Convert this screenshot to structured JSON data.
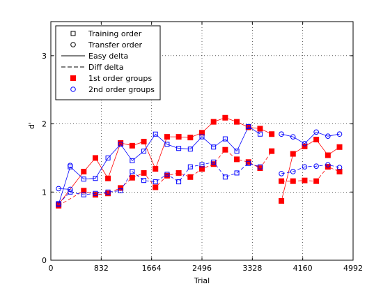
{
  "chart_data": {
    "type": "line",
    "title": "",
    "xlabel": "Trial",
    "ylabel": "d'",
    "xlim": [
      0,
      4992
    ],
    "ylim": [
      0,
      3.5
    ],
    "xticks": [
      0,
      832,
      1664,
      2496,
      3328,
      4160,
      4992
    ],
    "yticks": [
      0,
      1,
      2,
      3
    ],
    "grid": true,
    "legend_position": "top-left",
    "legend": [
      {
        "label": "Training order",
        "kind": "marker",
        "marker": "square-open",
        "color": "#000000"
      },
      {
        "label": "Transfer order",
        "kind": "marker",
        "marker": "circle-open",
        "color": "#000000"
      },
      {
        "label": "Easy delta",
        "kind": "line",
        "dash": "solid",
        "color": "#000000"
      },
      {
        "label": "Diff delta",
        "kind": "line",
        "dash": "dashed",
        "color": "#000000"
      },
      {
        "label": "1st order groups",
        "kind": "marker",
        "marker": "square-filled",
        "color": "#ff0000"
      },
      {
        "label": "2nd order groups",
        "kind": "marker",
        "marker": "circle-open",
        "color": "#0000ff"
      }
    ],
    "series": [
      {
        "group": "1st order groups",
        "order": "Training order",
        "delta": "Easy delta",
        "color": "#ff0000",
        "marker": "square-filled",
        "dash": "solid",
        "x": [
          128,
          544,
          736,
          944,
          1152,
          1344,
          1536,
          1728,
          1920,
          2112,
          2304,
          2496,
          2688,
          2880,
          3072,
          3264,
          3456,
          3648
        ],
        "y": [
          0.82,
          1.3,
          1.5,
          1.2,
          1.72,
          1.68,
          1.74,
          1.34,
          1.81,
          1.81,
          1.8,
          1.87,
          2.03,
          2.09,
          2.03,
          1.95,
          1.93,
          1.85
        ]
      },
      {
        "group": "1st order groups",
        "order": "Training order",
        "delta": "Diff delta",
        "color": "#ff0000",
        "marker": "square-filled",
        "dash": "dashed",
        "x": [
          128,
          544,
          736,
          944,
          1152,
          1344,
          1536,
          1728,
          1920,
          2112,
          2304,
          2496,
          2688,
          2880,
          3072,
          3264,
          3456,
          3648
        ],
        "y": [
          0.8,
          1.02,
          0.96,
          0.98,
          1.06,
          1.21,
          1.28,
          1.07,
          1.24,
          1.28,
          1.22,
          1.34,
          1.41,
          1.62,
          1.48,
          1.44,
          1.35,
          1.6
        ]
      },
      {
        "group": "1st order groups",
        "order": "Transfer order",
        "delta": "Easy delta",
        "color": "#ff0000",
        "marker": "square-filled",
        "dash": "solid",
        "x": [
          3808,
          4000,
          4192,
          4384,
          4576,
          4768
        ],
        "y": [
          0.87,
          1.56,
          1.67,
          1.77,
          1.54,
          1.66
        ]
      },
      {
        "group": "1st order groups",
        "order": "Transfer order",
        "delta": "Diff delta",
        "color": "#ff0000",
        "marker": "square-filled",
        "dash": "dashed",
        "x": [
          3808,
          4000,
          4192,
          4384,
          4576,
          4768
        ],
        "y": [
          1.16,
          1.16,
          1.17,
          1.16,
          1.37,
          1.3
        ]
      },
      {
        "group": "2nd order groups",
        "order": "Training order",
        "delta": "Easy delta",
        "color": "#0000ff",
        "marker": "square-open",
        "dash": "solid",
        "x": [
          128,
          320,
          544,
          736,
          944,
          1152,
          1344,
          1536,
          1728,
          1920,
          2112,
          2304,
          2496,
          2688,
          2880,
          3072,
          3264,
          3456
        ],
        "y": [
          0.82,
          1.37,
          1.19,
          1.2,
          1.5,
          1.7,
          1.46,
          1.6,
          1.85,
          1.7,
          1.64,
          1.63,
          1.81,
          1.66,
          1.78,
          1.6,
          1.96,
          1.85
        ]
      },
      {
        "group": "2nd order groups",
        "order": "Training order",
        "delta": "Diff delta",
        "color": "#0000ff",
        "marker": "square-open",
        "dash": "dashed",
        "x": [
          128,
          320,
          544,
          736,
          944,
          1152,
          1344,
          1536,
          1728,
          1920,
          2112,
          2304,
          2496,
          2688,
          2880,
          3072,
          3264,
          3456
        ],
        "y": [
          0.83,
          1.0,
          0.96,
          0.98,
          1.0,
          1.02,
          1.3,
          1.17,
          1.15,
          1.26,
          1.15,
          1.37,
          1.4,
          1.44,
          1.22,
          1.28,
          1.42,
          1.37
        ]
      },
      {
        "group": "2nd order groups",
        "order": "Transfer order",
        "delta": "Easy delta",
        "color": "#0000ff",
        "marker": "circle-open",
        "dash": "solid",
        "x": [
          128,
          320
        ],
        "y": [
          1.05,
          1.04
        ]
      },
      {
        "group": "2nd order groups",
        "order": "Transfer order",
        "delta": "Diff delta",
        "color": "#0000ff",
        "marker": "circle-open",
        "dash": "dashed",
        "x": [
          320
        ],
        "y": [
          1.39
        ]
      },
      {
        "group": "2nd order groups",
        "order": "Transfer order",
        "delta": "Easy delta",
        "color": "#0000ff",
        "marker": "circle-open",
        "dash": "solid",
        "x": [
          3808,
          4000,
          4192,
          4384,
          4576,
          4768
        ],
        "y": [
          1.85,
          1.81,
          1.71,
          1.88,
          1.82,
          1.85
        ]
      },
      {
        "group": "2nd order groups",
        "order": "Transfer order",
        "delta": "Diff delta",
        "color": "#0000ff",
        "marker": "circle-open",
        "dash": "dashed",
        "x": [
          3808,
          4000,
          4192,
          4384,
          4576,
          4768
        ],
        "y": [
          1.27,
          1.3,
          1.37,
          1.38,
          1.4,
          1.36
        ]
      }
    ]
  }
}
